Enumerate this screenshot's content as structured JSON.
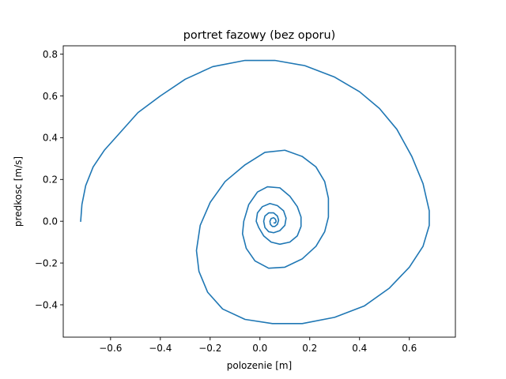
{
  "chart_data": {
    "type": "line",
    "title": "portret fazowy (bez oporu)",
    "xlabel": "polozenie [m]",
    "ylabel": "predkosc [m/s]",
    "xlim": [
      -0.79,
      0.785
    ],
    "ylim": [
      -0.555,
      0.84
    ],
    "xticks": [
      -0.6,
      -0.4,
      -0.2,
      0.0,
      0.2,
      0.4,
      0.6
    ],
    "yticks": [
      -0.4,
      -0.2,
      0.0,
      0.2,
      0.4,
      0.6,
      0.8
    ],
    "xtick_labels": [
      "−0.6",
      "−0.4",
      "−0.2",
      "0.0",
      "0.2",
      "0.4",
      "0.6"
    ],
    "ytick_labels": [
      "−0.4",
      "−0.2",
      "0.0",
      "0.2",
      "0.4",
      "0.6",
      "0.8"
    ],
    "grid": false,
    "line_color": "#1f77b4",
    "series": [
      {
        "x": [
          -0.72,
          -0.715,
          -0.7,
          -0.67,
          -0.625,
          -0.565,
          -0.49,
          -0.4,
          -0.3,
          -0.19,
          -0.06,
          0.06,
          0.18,
          0.3,
          0.4,
          0.48,
          0.55,
          0.61,
          0.655,
          0.68,
          0.68,
          0.655,
          0.6,
          0.52,
          0.42,
          0.3,
          0.17,
          0.05,
          -0.06,
          -0.15,
          -0.21,
          -0.245,
          -0.255,
          -0.24,
          -0.2,
          -0.14,
          -0.06,
          0.02,
          0.1,
          0.17,
          0.225,
          0.26,
          0.275,
          0.275,
          0.26,
          0.225,
          0.17,
          0.1,
          0.035,
          -0.02,
          -0.055,
          -0.07,
          -0.065,
          -0.045,
          -0.01,
          0.03,
          0.08,
          0.12,
          0.15,
          0.165,
          0.165,
          0.15,
          0.12,
          0.08,
          0.045,
          0.015,
          -0.005,
          -0.015,
          -0.01,
          0.01,
          0.04,
          0.07,
          0.095,
          0.105,
          0.1,
          0.08,
          0.055,
          0.035,
          0.02,
          0.015,
          0.02,
          0.035,
          0.055,
          0.07,
          0.075,
          0.07,
          0.06,
          0.05,
          0.042,
          0.04,
          0.045,
          0.055,
          0.062,
          0.065,
          0.062,
          0.057
        ],
        "y": [
          0.0,
          0.08,
          0.17,
          0.26,
          0.34,
          0.42,
          0.52,
          0.6,
          0.68,
          0.74,
          0.77,
          0.77,
          0.745,
          0.69,
          0.62,
          0.54,
          0.44,
          0.31,
          0.18,
          0.05,
          -0.02,
          -0.12,
          -0.22,
          -0.32,
          -0.405,
          -0.46,
          -0.49,
          -0.49,
          -0.47,
          -0.42,
          -0.34,
          -0.24,
          -0.14,
          -0.02,
          0.09,
          0.19,
          0.27,
          0.33,
          0.34,
          0.31,
          0.26,
          0.19,
          0.11,
          0.02,
          -0.05,
          -0.12,
          -0.18,
          -0.22,
          -0.225,
          -0.19,
          -0.13,
          -0.06,
          0.0,
          0.08,
          0.14,
          0.165,
          0.16,
          0.12,
          0.07,
          0.02,
          -0.025,
          -0.07,
          -0.1,
          -0.11,
          -0.1,
          -0.07,
          -0.03,
          0.0,
          0.04,
          0.07,
          0.085,
          0.075,
          0.05,
          0.015,
          -0.02,
          -0.045,
          -0.055,
          -0.05,
          -0.03,
          0.0,
          0.025,
          0.04,
          0.04,
          0.025,
          0.005,
          -0.015,
          -0.025,
          -0.025,
          -0.015,
          0.0,
          0.013,
          0.017,
          0.01,
          0.0,
          -0.008,
          -0.008
        ]
      }
    ]
  }
}
